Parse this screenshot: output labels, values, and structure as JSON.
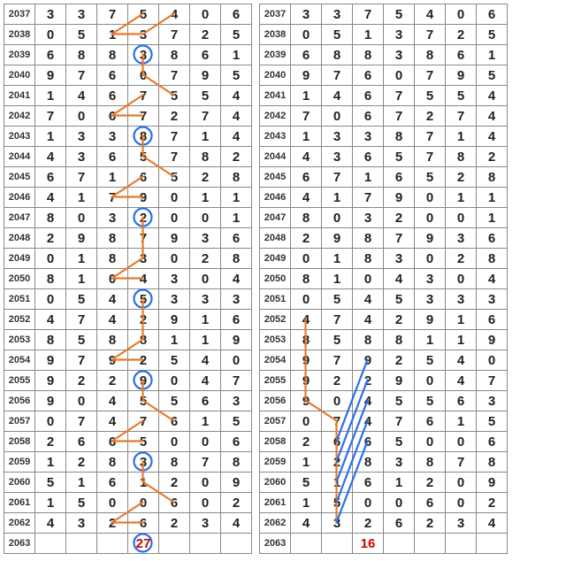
{
  "left": {
    "rows": [
      {
        "id": "2037",
        "cells": [
          "3",
          "3",
          "7",
          "5",
          "4",
          "0",
          "6"
        ]
      },
      {
        "id": "2038",
        "cells": [
          "0",
          "5",
          "1",
          "3",
          "7",
          "2",
          "5"
        ]
      },
      {
        "id": "2039",
        "cells": [
          "6",
          "8",
          "8",
          "3",
          "8",
          "6",
          "1"
        ]
      },
      {
        "id": "2040",
        "cells": [
          "9",
          "7",
          "6",
          "0",
          "7",
          "9",
          "5"
        ]
      },
      {
        "id": "2041",
        "cells": [
          "1",
          "4",
          "6",
          "7",
          "5",
          "5",
          "4"
        ]
      },
      {
        "id": "2042",
        "cells": [
          "7",
          "0",
          "6",
          "7",
          "2",
          "7",
          "4"
        ]
      },
      {
        "id": "2043",
        "cells": [
          "1",
          "3",
          "3",
          "8",
          "7",
          "1",
          "4"
        ]
      },
      {
        "id": "2044",
        "cells": [
          "4",
          "3",
          "6",
          "5",
          "7",
          "8",
          "2"
        ]
      },
      {
        "id": "2045",
        "cells": [
          "6",
          "7",
          "1",
          "6",
          "5",
          "2",
          "8"
        ]
      },
      {
        "id": "2046",
        "cells": [
          "4",
          "1",
          "7",
          "9",
          "0",
          "1",
          "1"
        ]
      },
      {
        "id": "2047",
        "cells": [
          "8",
          "0",
          "3",
          "2",
          "0",
          "0",
          "1"
        ]
      },
      {
        "id": "2048",
        "cells": [
          "2",
          "9",
          "8",
          "7",
          "9",
          "3",
          "6"
        ]
      },
      {
        "id": "2049",
        "cells": [
          "0",
          "1",
          "8",
          "3",
          "0",
          "2",
          "8"
        ]
      },
      {
        "id": "2050",
        "cells": [
          "8",
          "1",
          "0",
          "4",
          "3",
          "0",
          "4"
        ]
      },
      {
        "id": "2051",
        "cells": [
          "0",
          "5",
          "4",
          "5",
          "3",
          "3",
          "3"
        ]
      },
      {
        "id": "2052",
        "cells": [
          "4",
          "7",
          "4",
          "2",
          "9",
          "1",
          "6"
        ]
      },
      {
        "id": "2053",
        "cells": [
          "8",
          "5",
          "8",
          "8",
          "1",
          "1",
          "9"
        ]
      },
      {
        "id": "2054",
        "cells": [
          "9",
          "7",
          "9",
          "2",
          "5",
          "4",
          "0"
        ]
      },
      {
        "id": "2055",
        "cells": [
          "9",
          "2",
          "2",
          "9",
          "0",
          "4",
          "7"
        ]
      },
      {
        "id": "2056",
        "cells": [
          "9",
          "0",
          "4",
          "5",
          "5",
          "6",
          "3"
        ]
      },
      {
        "id": "2057",
        "cells": [
          "0",
          "7",
          "4",
          "7",
          "6",
          "1",
          "5"
        ]
      },
      {
        "id": "2058",
        "cells": [
          "2",
          "6",
          "6",
          "5",
          "0",
          "0",
          "6"
        ]
      },
      {
        "id": "2059",
        "cells": [
          "1",
          "2",
          "8",
          "3",
          "8",
          "7",
          "8"
        ]
      },
      {
        "id": "2060",
        "cells": [
          "5",
          "1",
          "6",
          "1",
          "2",
          "0",
          "9"
        ]
      },
      {
        "id": "2061",
        "cells": [
          "1",
          "5",
          "0",
          "0",
          "6",
          "0",
          "2"
        ]
      },
      {
        "id": "2062",
        "cells": [
          "4",
          "3",
          "2",
          "6",
          "2",
          "3",
          "4"
        ]
      },
      {
        "id": "2063",
        "cells": [
          "",
          "",
          "",
          "27",
          "",
          "",
          ""
        ]
      }
    ],
    "circles": [
      {
        "row": 2,
        "col": 3
      },
      {
        "row": 6,
        "col": 3
      },
      {
        "row": 10,
        "col": 3
      },
      {
        "row": 14,
        "col": 3
      },
      {
        "row": 18,
        "col": 3
      },
      {
        "row": 22,
        "col": 3
      },
      {
        "row": 26,
        "col": 3
      }
    ],
    "segments": [
      {
        "r1": 0,
        "c1": 3,
        "r2": 1,
        "c2": 2
      },
      {
        "r1": 1,
        "c1": 2,
        "r2": 1,
        "c2": 3
      },
      {
        "r1": 0,
        "c1": 4,
        "r2": 1,
        "c2": 3
      },
      {
        "r1": 2,
        "c1": 3,
        "r2": 3,
        "c2": 3
      },
      {
        "r1": 3,
        "c1": 3,
        "r2": 4,
        "c2": 4
      },
      {
        "r1": 4,
        "c1": 3,
        "r2": 5,
        "c2": 2
      },
      {
        "r1": 5,
        "c1": 2,
        "r2": 5,
        "c2": 3
      },
      {
        "r1": 6,
        "c1": 3,
        "r2": 7,
        "c2": 3
      },
      {
        "r1": 7,
        "c1": 3,
        "r2": 8,
        "c2": 4
      },
      {
        "r1": 8,
        "c1": 3,
        "r2": 9,
        "c2": 2
      },
      {
        "r1": 9,
        "c1": 2,
        "r2": 9,
        "c2": 3
      },
      {
        "r1": 10,
        "c1": 3,
        "r2": 11,
        "c2": 3
      },
      {
        "r1": 11,
        "c1": 3,
        "r2": 12,
        "c2": 3
      },
      {
        "r1": 12,
        "c1": 3,
        "r2": 13,
        "c2": 2
      },
      {
        "r1": 13,
        "c1": 2,
        "r2": 13,
        "c2": 3
      },
      {
        "r1": 14,
        "c1": 3,
        "r2": 15,
        "c2": 3
      },
      {
        "r1": 15,
        "c1": 3,
        "r2": 16,
        "c2": 3
      },
      {
        "r1": 16,
        "c1": 3,
        "r2": 17,
        "c2": 2
      },
      {
        "r1": 17,
        "c1": 2,
        "r2": 17,
        "c2": 3
      },
      {
        "r1": 18,
        "c1": 3,
        "r2": 19,
        "c2": 3
      },
      {
        "r1": 19,
        "c1": 3,
        "r2": 20,
        "c2": 4
      },
      {
        "r1": 20,
        "c1": 3,
        "r2": 21,
        "c2": 2
      },
      {
        "r1": 21,
        "c1": 2,
        "r2": 21,
        "c2": 3
      },
      {
        "r1": 22,
        "c1": 3,
        "r2": 23,
        "c2": 3
      },
      {
        "r1": 23,
        "c1": 3,
        "r2": 24,
        "c2": 4
      },
      {
        "r1": 24,
        "c1": 3,
        "r2": 25,
        "c2": 2
      },
      {
        "r1": 25,
        "c1": 2,
        "r2": 25,
        "c2": 3
      }
    ],
    "red_cell": {
      "row": 26,
      "col": 3
    }
  },
  "right": {
    "rows": [
      {
        "id": "2037",
        "cells": [
          "3",
          "3",
          "7",
          "5",
          "4",
          "0",
          "6"
        ]
      },
      {
        "id": "2038",
        "cells": [
          "0",
          "5",
          "1",
          "3",
          "7",
          "2",
          "5"
        ]
      },
      {
        "id": "2039",
        "cells": [
          "6",
          "8",
          "8",
          "3",
          "8",
          "6",
          "1"
        ]
      },
      {
        "id": "2040",
        "cells": [
          "9",
          "7",
          "6",
          "0",
          "7",
          "9",
          "5"
        ]
      },
      {
        "id": "2041",
        "cells": [
          "1",
          "4",
          "6",
          "7",
          "5",
          "5",
          "4"
        ]
      },
      {
        "id": "2042",
        "cells": [
          "7",
          "0",
          "6",
          "7",
          "2",
          "7",
          "4"
        ]
      },
      {
        "id": "2043",
        "cells": [
          "1",
          "3",
          "3",
          "8",
          "7",
          "1",
          "4"
        ]
      },
      {
        "id": "2044",
        "cells": [
          "4",
          "3",
          "6",
          "5",
          "7",
          "8",
          "2"
        ]
      },
      {
        "id": "2045",
        "cells": [
          "6",
          "7",
          "1",
          "6",
          "5",
          "2",
          "8"
        ]
      },
      {
        "id": "2046",
        "cells": [
          "4",
          "1",
          "7",
          "9",
          "0",
          "1",
          "1"
        ]
      },
      {
        "id": "2047",
        "cells": [
          "8",
          "0",
          "3",
          "2",
          "0",
          "0",
          "1"
        ]
      },
      {
        "id": "2048",
        "cells": [
          "2",
          "9",
          "8",
          "7",
          "9",
          "3",
          "6"
        ]
      },
      {
        "id": "2049",
        "cells": [
          "0",
          "1",
          "8",
          "3",
          "0",
          "2",
          "8"
        ]
      },
      {
        "id": "2050",
        "cells": [
          "8",
          "1",
          "0",
          "4",
          "3",
          "0",
          "4"
        ]
      },
      {
        "id": "2051",
        "cells": [
          "0",
          "5",
          "4",
          "5",
          "3",
          "3",
          "3"
        ]
      },
      {
        "id": "2052",
        "cells": [
          "4",
          "7",
          "4",
          "2",
          "9",
          "1",
          "6"
        ]
      },
      {
        "id": "2053",
        "cells": [
          "8",
          "5",
          "8",
          "8",
          "1",
          "1",
          "9"
        ]
      },
      {
        "id": "2054",
        "cells": [
          "9",
          "7",
          "9",
          "2",
          "5",
          "4",
          "0"
        ]
      },
      {
        "id": "2055",
        "cells": [
          "9",
          "2",
          "2",
          "9",
          "0",
          "4",
          "7"
        ]
      },
      {
        "id": "2056",
        "cells": [
          "9",
          "0",
          "4",
          "5",
          "5",
          "6",
          "3"
        ]
      },
      {
        "id": "2057",
        "cells": [
          "0",
          "7",
          "4",
          "7",
          "6",
          "1",
          "5"
        ]
      },
      {
        "id": "2058",
        "cells": [
          "2",
          "6",
          "6",
          "5",
          "0",
          "0",
          "6"
        ]
      },
      {
        "id": "2059",
        "cells": [
          "1",
          "2",
          "8",
          "3",
          "8",
          "7",
          "8"
        ]
      },
      {
        "id": "2060",
        "cells": [
          "5",
          "1",
          "6",
          "1",
          "2",
          "0",
          "9"
        ]
      },
      {
        "id": "2061",
        "cells": [
          "1",
          "5",
          "0",
          "0",
          "6",
          "0",
          "2"
        ]
      },
      {
        "id": "2062",
        "cells": [
          "4",
          "3",
          "2",
          "6",
          "2",
          "3",
          "4"
        ]
      },
      {
        "id": "2063",
        "cells": [
          "",
          "",
          "16",
          "",
          "",
          "",
          ""
        ]
      }
    ],
    "orange_segments": [
      {
        "r1": 15,
        "c1": 0,
        "r2": 16,
        "c2": 0
      },
      {
        "r1": 16,
        "c1": 0,
        "r2": 17,
        "c2": 0
      },
      {
        "r1": 17,
        "c1": 0,
        "r2": 18,
        "c2": 0
      },
      {
        "r1": 18,
        "c1": 0,
        "r2": 19,
        "c2": 0
      },
      {
        "r1": 19,
        "c1": 0,
        "r2": 20,
        "c2": 1
      },
      {
        "r1": 20,
        "c1": 1,
        "r2": 21,
        "c2": 1
      },
      {
        "r1": 21,
        "c1": 1,
        "r2": 22,
        "c2": 1
      },
      {
        "r1": 22,
        "c1": 1,
        "r2": 23,
        "c2": 1
      },
      {
        "r1": 23,
        "c1": 1,
        "r2": 24,
        "c2": 1
      },
      {
        "r1": 24,
        "c1": 1,
        "r2": 25,
        "c2": 1
      }
    ],
    "blue_segments": [
      {
        "r1": 17,
        "c1": 2,
        "r2": 21,
        "c2": 1
      },
      {
        "r1": 18,
        "c1": 2,
        "r2": 22,
        "c2": 1
      },
      {
        "r1": 19,
        "c1": 2,
        "r2": 23,
        "c2": 1
      },
      {
        "r1": 20,
        "c1": 2,
        "r2": 24,
        "c2": 1
      },
      {
        "r1": 21,
        "c1": 2,
        "r2": 25,
        "c2": 1
      }
    ],
    "red_cell": {
      "row": 26,
      "col": 2
    }
  },
  "colors": {
    "orange": "#e8792a",
    "blue": "#2a6fe8",
    "circle": "#2a6fe8",
    "red": "#cc0000"
  },
  "cell": {
    "w": 35,
    "h": 23,
    "label_w": 35,
    "stroke_w": 2.2,
    "circle_r": 10
  }
}
